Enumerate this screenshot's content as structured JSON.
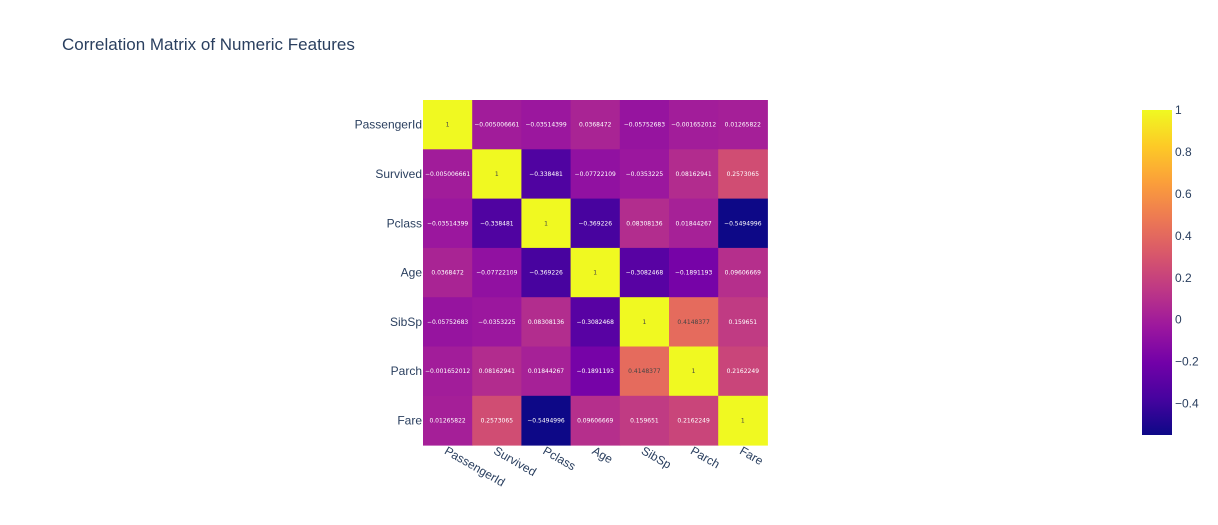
{
  "chart_data": {
    "type": "heatmap",
    "title": "Correlation Matrix of Numeric Features",
    "x": [
      "PassengerId",
      "Survived",
      "Pclass",
      "Age",
      "SibSp",
      "Parch",
      "Fare"
    ],
    "y": [
      "PassengerId",
      "Survived",
      "Pclass",
      "Age",
      "SibSp",
      "Parch",
      "Fare"
    ],
    "z": [
      [
        1,
        -0.005006661,
        -0.03514399,
        0.0368472,
        -0.05752683,
        -0.001652012,
        0.01265822
      ],
      [
        -0.005006661,
        1,
        -0.338481,
        -0.07722109,
        -0.0353225,
        0.08162941,
        0.2573065
      ],
      [
        -0.03514399,
        -0.338481,
        1,
        -0.369226,
        0.08308136,
        0.01844267,
        -0.5494996
      ],
      [
        0.0368472,
        -0.07722109,
        -0.369226,
        1,
        -0.3082468,
        -0.1891193,
        0.09606669
      ],
      [
        -0.05752683,
        -0.0353225,
        0.08308136,
        -0.3082468,
        1,
        0.4148377,
        0.159651
      ],
      [
        -0.001652012,
        0.08162941,
        0.01844267,
        -0.1891193,
        0.4148377,
        1,
        0.2162249
      ],
      [
        0.01265822,
        0.2573065,
        -0.5494996,
        0.09606669,
        0.159651,
        0.2162249,
        1
      ]
    ],
    "text": [
      [
        "1",
        "−0.005006661",
        "−0.03514399",
        "0.0368472",
        "−0.05752683",
        "−0.001652012",
        "0.01265822"
      ],
      [
        "−0.005006661",
        "1",
        "−0.338481",
        "−0.07722109",
        "−0.0353225",
        "0.08162941",
        "0.2573065"
      ],
      [
        "−0.03514399",
        "−0.338481",
        "1",
        "−0.369226",
        "0.08308136",
        "0.01844267",
        "−0.5494996"
      ],
      [
        "0.0368472",
        "−0.07722109",
        "−0.369226",
        "1",
        "−0.3082468",
        "−0.1891193",
        "0.09606669"
      ],
      [
        "−0.05752683",
        "−0.0353225",
        "0.08308136",
        "−0.3082468",
        "1",
        "0.4148377",
        "0.159651"
      ],
      [
        "−0.001652012",
        "0.08162941",
        "0.01844267",
        "−0.1891193",
        "0.4148377",
        "1",
        "0.2162249"
      ],
      [
        "0.01265822",
        "0.2573065",
        "−0.5494996",
        "0.09606669",
        "0.159651",
        "0.2162249",
        "1"
      ]
    ],
    "zrange": [
      -0.5494996,
      1
    ],
    "colorscale": [
      "#0d0887",
      "#46039f",
      "#7201a8",
      "#9c179e",
      "#bd3786",
      "#d8576b",
      "#ed7953",
      "#fb9f3a",
      "#fdca26",
      "#f0f921"
    ],
    "colorbar": {
      "tickvals": [
        1,
        0.8,
        0.6,
        0.4,
        0.2,
        0,
        -0.2,
        -0.4
      ],
      "ticktext": [
        "1",
        "0.8",
        "0.6",
        "0.4",
        "0.2",
        "0",
        "−0.2",
        "−0.4"
      ],
      "position": "right"
    },
    "text_colors": {
      "dark_cells": "#ffffff",
      "light_cells": "#444444"
    },
    "grid": false,
    "legend": "none"
  }
}
